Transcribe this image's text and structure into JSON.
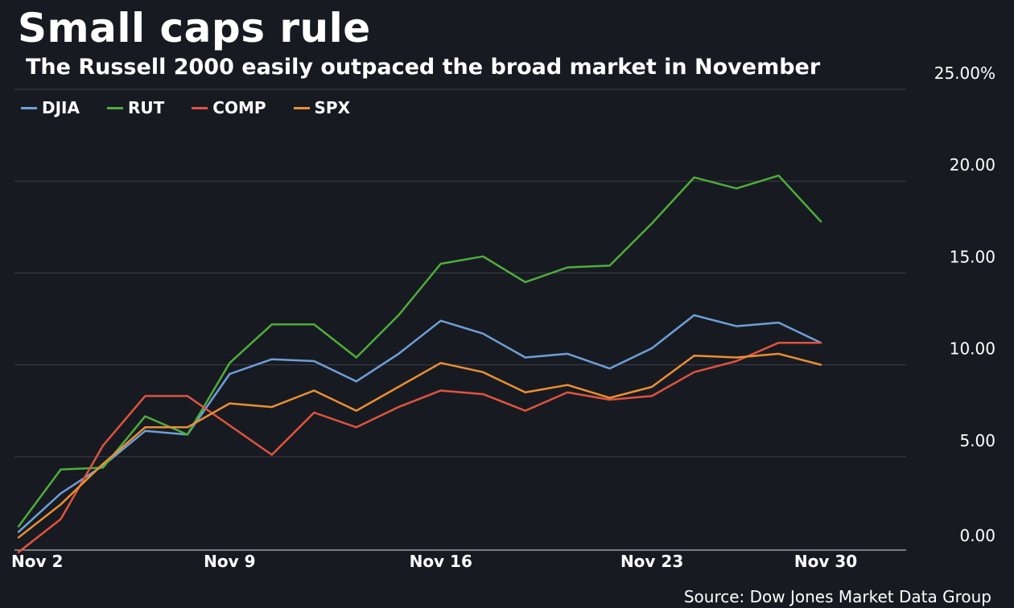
{
  "chart_data": {
    "type": "line",
    "title": "Small caps rule",
    "subtitle": "The Russell 2000 easily outpaced the broad market in November",
    "source": "Source: Dow Jones Market Data Group",
    "ylim": [
      0,
      25
    ],
    "yticks": [
      {
        "value": 25,
        "label": "25.00%"
      },
      {
        "value": 20,
        "label": "20.00"
      },
      {
        "value": 15,
        "label": "15.00"
      },
      {
        "value": 10,
        "label": "10.00"
      },
      {
        "value": 5,
        "label": "5.00"
      },
      {
        "value": 0,
        "label": "0.00"
      }
    ],
    "xticks": [
      {
        "index": 0,
        "label": "Nov 2"
      },
      {
        "index": 5,
        "label": "Nov 9"
      },
      {
        "index": 10,
        "label": "Nov 16"
      },
      {
        "index": 15,
        "label": "Nov 23"
      },
      {
        "index": 19,
        "label": "Nov 30"
      }
    ],
    "x": [
      "Nov 2",
      "Nov 3",
      "Nov 4",
      "Nov 5",
      "Nov 6",
      "Nov 9",
      "Nov 10",
      "Nov 11",
      "Nov 12",
      "Nov 13",
      "Nov 16",
      "Nov 17",
      "Nov 18",
      "Nov 19",
      "Nov 20",
      "Nov 23",
      "Nov 24",
      "Nov 25",
      "Nov 27",
      "Nov 30"
    ],
    "series": [
      {
        "name": "DJIA",
        "color": "#6f9fd8",
        "values": [
          0.9,
          3.0,
          4.5,
          6.4,
          6.2,
          9.5,
          10.3,
          10.2,
          9.1,
          10.6,
          12.4,
          11.7,
          10.4,
          10.6,
          9.8,
          10.9,
          12.7,
          12.1,
          12.3,
          11.2
        ]
      },
      {
        "name": "RUT",
        "color": "#4fad3c",
        "values": [
          1.2,
          4.3,
          4.4,
          7.2,
          6.2,
          10.1,
          12.2,
          12.2,
          10.4,
          12.7,
          15.5,
          15.9,
          14.5,
          15.3,
          15.4,
          17.7,
          20.2,
          19.6,
          20.3,
          17.8
        ]
      },
      {
        "name": "COMP",
        "color": "#e0533f",
        "values": [
          -0.2,
          1.6,
          5.6,
          8.3,
          8.3,
          6.7,
          5.1,
          7.4,
          6.6,
          7.7,
          8.6,
          8.4,
          7.5,
          8.5,
          8.1,
          8.3,
          9.6,
          10.2,
          11.2,
          11.2
        ]
      },
      {
        "name": "SPX",
        "color": "#eb8f34",
        "values": [
          0.6,
          2.4,
          4.6,
          6.6,
          6.6,
          7.9,
          7.7,
          8.6,
          7.5,
          8.8,
          10.1,
          9.6,
          8.5,
          8.9,
          8.2,
          8.8,
          10.5,
          10.4,
          10.6,
          10.0
        ]
      }
    ]
  }
}
